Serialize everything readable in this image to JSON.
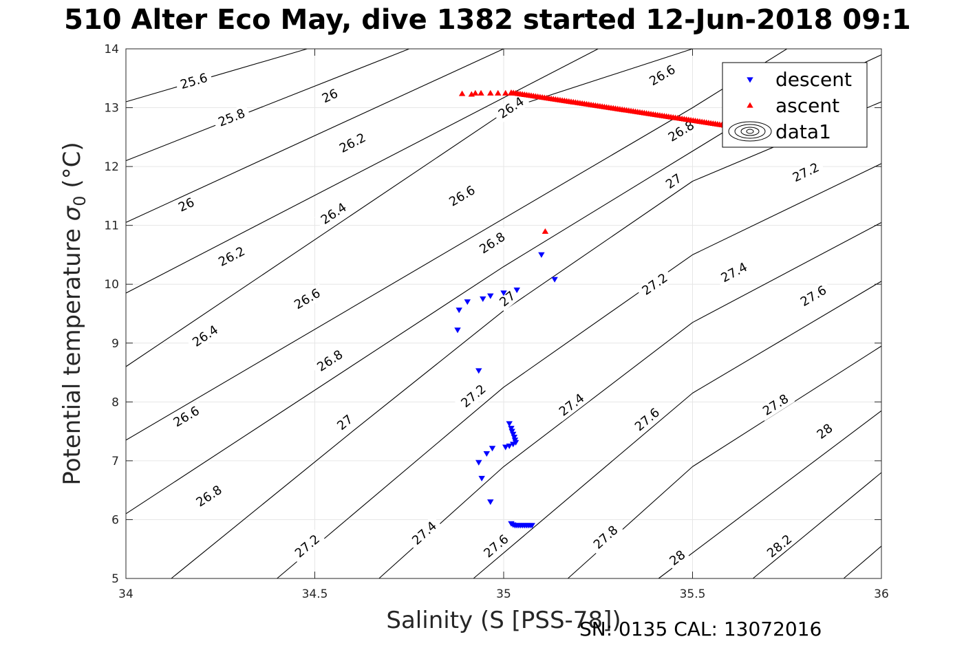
{
  "title": "510 Alter Eco May, dive 1382 started 12-Jun-2018 09:1",
  "footer": "SN: 0135  CAL: 13072016",
  "chart_data": {
    "type": "scatter",
    "title": "510 Alter Eco May, dive 1382 started 12-Jun-2018 09:1",
    "xlabel": "Salinity (S [PSS-78])",
    "ylabel_main": "Potential temperature ",
    "ylabel_sigma": "σ",
    "ylabel_sub": "0",
    "ylabel_tail": " (°C)",
    "xlim": [
      34,
      36
    ],
    "ylim": [
      5,
      14
    ],
    "xticks": [
      "34",
      "34.5",
      "35",
      "35.5",
      "36"
    ],
    "yticks": [
      "5",
      "6",
      "7",
      "8",
      "9",
      "10",
      "11",
      "12",
      "13",
      "14"
    ],
    "grid": true,
    "legend_position": "top-right",
    "legend": [
      {
        "label": "descent",
        "marker": "triangle-down",
        "color": "#0000ff"
      },
      {
        "label": "ascent",
        "marker": "triangle-up",
        "color": "#ff0000"
      },
      {
        "label": "data1",
        "marker": "contour",
        "color": "#000000"
      }
    ],
    "series": [
      {
        "name": "descent",
        "color": "#0000ff",
        "marker": "triangle-down",
        "points": [
          [
            34.878,
            9.22
          ],
          [
            34.882,
            9.56
          ],
          [
            34.904,
            9.7
          ],
          [
            34.945,
            9.75
          ],
          [
            34.965,
            9.8
          ],
          [
            35.0,
            9.85
          ],
          [
            35.035,
            9.9
          ],
          [
            35.1,
            10.5
          ],
          [
            35.135,
            10.08
          ],
          [
            34.934,
            8.53
          ],
          [
            35.015,
            7.63
          ],
          [
            35.02,
            7.55
          ],
          [
            35.022,
            7.5
          ],
          [
            35.025,
            7.45
          ],
          [
            35.028,
            7.4
          ],
          [
            35.03,
            7.35
          ],
          [
            35.032,
            7.31
          ],
          [
            35.025,
            7.28
          ],
          [
            35.015,
            7.25
          ],
          [
            35.005,
            7.23
          ],
          [
            34.97,
            7.21
          ],
          [
            34.955,
            7.12
          ],
          [
            34.934,
            6.97
          ],
          [
            34.942,
            6.7
          ],
          [
            34.965,
            6.3
          ],
          [
            35.02,
            5.93
          ],
          [
            35.025,
            5.91
          ],
          [
            35.03,
            5.9
          ],
          [
            35.035,
            5.9
          ],
          [
            35.04,
            5.9
          ],
          [
            35.045,
            5.9
          ],
          [
            35.05,
            5.9
          ],
          [
            35.055,
            5.9
          ],
          [
            35.06,
            5.9
          ],
          [
            35.065,
            5.9
          ],
          [
            35.07,
            5.9
          ],
          [
            35.075,
            5.9
          ]
        ]
      },
      {
        "name": "ascent",
        "color": "#ff0000",
        "marker": "triangle-up",
        "points": [
          [
            34.89,
            13.24
          ],
          [
            34.915,
            13.23
          ],
          [
            34.925,
            13.25
          ],
          [
            34.94,
            13.25
          ],
          [
            34.965,
            13.25
          ],
          [
            34.985,
            13.25
          ],
          [
            35.005,
            13.25
          ],
          [
            35.02,
            13.25
          ],
          [
            35.11,
            10.9
          ]
        ],
        "profile_segment": {
          "x_start": 35.02,
          "y_start": 13.26,
          "x_end": 35.66,
          "y_end": 12.63,
          "n_points": 110
        }
      }
    ],
    "contours": {
      "density_levels": [
        "25.6",
        "25.8",
        "26",
        "26.2",
        "26.4",
        "26.6",
        "26.8",
        "27",
        "27.2",
        "27.4",
        "27.6",
        "27.8",
        "28",
        "28.2"
      ],
      "lines": [
        {
          "label": "25.6",
          "points": [
            [
              34.0,
              13.1
            ],
            [
              34.48,
              14.0
            ]
          ],
          "labels_at": [
            [
              34.18,
              13.45
            ]
          ]
        },
        {
          "label": "25.8",
          "points": [
            [
              34.0,
              12.1
            ],
            [
              34.75,
              14.0
            ]
          ],
          "labels_at": [
            [
              34.28,
              12.83
            ]
          ]
        },
        {
          "label": "26",
          "points": [
            [
              34.0,
              11.05
            ],
            [
              35.0,
              14.0
            ]
          ],
          "labels_at": [
            [
              34.16,
              11.35
            ],
            [
              34.54,
              13.2
            ]
          ]
        },
        {
          "label": "26.2",
          "points": [
            [
              34.0,
              9.85
            ],
            [
              35.25,
              14.0
            ]
          ],
          "labels_at": [
            [
              34.28,
              10.47
            ],
            [
              34.6,
              12.4
            ]
          ]
        },
        {
          "label": "26.4",
          "points": [
            [
              34.0,
              8.6
            ],
            [
              35.02,
              13.0
            ],
            [
              35.5,
              14.0
            ]
          ],
          "labels_at": [
            [
              34.21,
              9.12
            ],
            [
              34.55,
              11.2
            ],
            [
              35.02,
              13.0
            ]
          ]
        },
        {
          "label": "26.6",
          "points": [
            [
              34.0,
              7.35
            ],
            [
              35.5,
              13.0
            ],
            [
              35.75,
              14.0
            ]
          ],
          "labels_at": [
            [
              34.16,
              7.75
            ],
            [
              34.48,
              9.75
            ],
            [
              34.89,
              11.5
            ],
            [
              35.42,
              13.55
            ]
          ]
        },
        {
          "label": "26.8",
          "points": [
            [
              34.0,
              6.1
            ],
            [
              35.0,
              10.3
            ],
            [
              35.65,
              12.85
            ],
            [
              36.0,
              13.9
            ]
          ],
          "labels_at": [
            [
              34.22,
              6.4
            ],
            [
              34.54,
              8.7
            ],
            [
              34.97,
              10.7
            ],
            [
              35.47,
              12.6
            ]
          ]
        },
        {
          "label": "27",
          "points": [
            [
              34.12,
              5.0
            ],
            [
              34.6,
              7.5
            ],
            [
              35.0,
              9.55
            ],
            [
              35.5,
              11.75
            ],
            [
              36.0,
              13.1
            ]
          ],
          "labels_at": [
            [
              34.58,
              7.65
            ],
            [
              35.01,
              9.75
            ],
            [
              35.45,
              11.75
            ]
          ]
        },
        {
          "label": "27.2",
          "points": [
            [
              34.4,
              5.0
            ],
            [
              35.0,
              8.25
            ],
            [
              35.5,
              10.5
            ],
            [
              36.0,
              12.05
            ]
          ],
          "labels_at": [
            [
              34.48,
              5.55
            ],
            [
              34.92,
              8.1
            ],
            [
              35.4,
              10.0
            ],
            [
              35.8,
              11.9
            ]
          ]
        },
        {
          "label": "27.4",
          "points": [
            [
              34.67,
              5.0
            ],
            [
              35.0,
              6.9
            ],
            [
              35.5,
              9.35
            ],
            [
              36.0,
              11.05
            ]
          ],
          "labels_at": [
            [
              34.79,
              5.77
            ],
            [
              35.18,
              7.95
            ],
            [
              35.61,
              10.2
            ]
          ]
        },
        {
          "label": "27.6",
          "points": [
            [
              34.92,
              5.0
            ],
            [
              35.5,
              8.15
            ],
            [
              36.0,
              10.05
            ]
          ],
          "labels_at": [
            [
              34.98,
              5.55
            ],
            [
              35.38,
              7.7
            ],
            [
              35.82,
              9.8
            ]
          ]
        },
        {
          "label": "27.8",
          "points": [
            [
              35.17,
              5.0
            ],
            [
              35.5,
              6.9
            ],
            [
              36.0,
              8.95
            ]
          ],
          "labels_at": [
            [
              35.27,
              5.7
            ],
            [
              35.72,
              7.95
            ]
          ]
        },
        {
          "label": "28",
          "points": [
            [
              35.41,
              5.0
            ],
            [
              36.0,
              7.85
            ]
          ],
          "labels_at": [
            [
              35.46,
              5.35
            ],
            [
              35.85,
              7.5
            ]
          ]
        },
        {
          "label": "28.2",
          "points": [
            [
              35.66,
              5.0
            ],
            [
              36.0,
              6.8
            ]
          ],
          "labels_at": [
            [
              35.73,
              5.55
            ]
          ]
        },
        {
          "label": "",
          "points": [
            [
              35.9,
              5.0
            ],
            [
              36.0,
              5.55
            ]
          ],
          "labels_at": []
        }
      ]
    }
  }
}
